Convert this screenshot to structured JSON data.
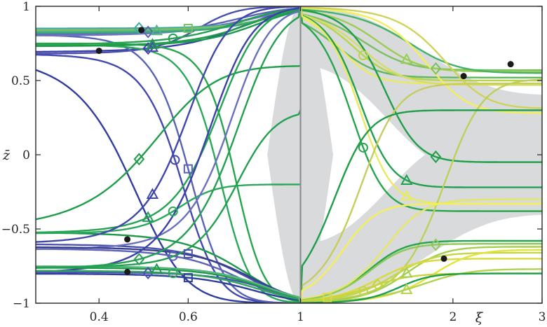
{
  "chart_data": {
    "type": "line",
    "title": "",
    "xlabel": "ξ",
    "ylabel": "z̄",
    "x_scale": "log",
    "xlim": [
      0.3,
      3
    ],
    "ylim": [
      -1,
      1
    ],
    "x_ticks": [
      {
        "value": 0.4,
        "label": "0.4"
      },
      {
        "value": 0.6,
        "label": "0.6"
      },
      {
        "value": 1,
        "label": "1"
      },
      {
        "value": 2,
        "label": "2"
      },
      {
        "value": 3,
        "label": "3"
      }
    ],
    "y_ticks": [
      {
        "value": -1,
        "label": "−1"
      },
      {
        "value": -0.5,
        "label": "−0.5"
      },
      {
        "value": 0,
        "label": "0"
      },
      {
        "value": 0.5,
        "label": "0.5"
      },
      {
        "value": 1,
        "label": "1"
      }
    ],
    "grid": false,
    "legend": "none",
    "colors": {
      "background_band": "#d9dadc",
      "axis": "#262626",
      "divider": "#8e8e8e",
      "marker_dot": "#1a1a1a"
    },
    "left_series": [
      {
        "color": "#3b3fa6",
        "z0": 0.69,
        "zf": 1,
        "c": 0.74,
        "s": 0.1,
        "marker": "diamond",
        "xm": 0.5
      },
      {
        "color": "#4348ad",
        "z0": 0.68,
        "zf": -1,
        "c": 0.58,
        "s": 0.05,
        "marker": "circle",
        "xm": 0.565
      },
      {
        "color": "#4a50b0",
        "z0": 0.68,
        "zf": 1,
        "c": 0.62,
        "s": 0.06,
        "marker": "triangle",
        "xm": 0.51
      },
      {
        "color": "#2f3e9e",
        "z0": 0.68,
        "zf": -1,
        "c": 0.46,
        "s": 0.06,
        "marker": "none",
        "xm": 0.5
      },
      {
        "color": "#5b63b8",
        "z0": 0.81,
        "zf": 1,
        "c": 0.73,
        "s": 0.1,
        "marker": "diamond",
        "xm": 0.5
      },
      {
        "color": "#5a62b7",
        "z0": 0.81,
        "zf": -1,
        "c": 0.6,
        "s": 0.05,
        "marker": "square",
        "xm": 0.6
      },
      {
        "color": "#6f73c0",
        "z0": 0.8,
        "zf": 1,
        "c": 0.76,
        "s": 0.11,
        "marker": "none",
        "xm": 0.5
      },
      {
        "color": "#6670bd",
        "z0": 0.83,
        "zf": 1,
        "c": 0.8,
        "s": 0.1,
        "marker": "none",
        "xm": 0.5
      },
      {
        "color": "#44a9a0",
        "z0": 0.85,
        "zf": 1,
        "c": 0.88,
        "s": 0.1,
        "marker": "diamond",
        "xm": 0.48
      },
      {
        "color": "#55b388",
        "z0": 0.83,
        "zf": 1,
        "c": 0.85,
        "s": 0.1,
        "marker": "triangle",
        "xm": 0.52
      },
      {
        "color": "#7bc064",
        "z0": 0.84,
        "zf": 1,
        "c": 0.86,
        "s": 0.1,
        "marker": "square",
        "xm": 0.6
      },
      {
        "color": "#3aa77a",
        "z0": 0.82,
        "zf": 1,
        "c": 0.84,
        "s": 0.1,
        "marker": "none",
        "xm": 0.5
      },
      {
        "color": "#1d9a52",
        "z0": 0.73,
        "zf": 1,
        "c": 0.8,
        "s": 0.1,
        "marker": "triangle",
        "xm": 0.51
      },
      {
        "color": "#22a150",
        "z0": 0.74,
        "zf": 1,
        "c": 0.72,
        "s": 0.1,
        "marker": "circle",
        "xm": 0.56
      },
      {
        "color": "#2aa85a",
        "z0": 0.74,
        "zf": -1,
        "c": 0.69,
        "s": 0.05,
        "marker": "none",
        "xm": 0.5
      },
      {
        "color": "#27a54d",
        "z0": 0.75,
        "zf": -1,
        "c": 0.74,
        "s": 0.05,
        "marker": "none",
        "xm": 0.5
      },
      {
        "color": "#1f9c46",
        "z0": 0.73,
        "zf": 1,
        "c": 0.77,
        "s": 0.1,
        "marker": "none",
        "xm": 0.5
      },
      {
        "color": "#1f9e4a",
        "z0": -0.52,
        "zf": 0.6,
        "c": 0.5,
        "s": 0.08,
        "marker": "diamond",
        "xm": 0.48
      },
      {
        "color": "#1a9a48",
        "z0": -0.52,
        "zf": -1,
        "c": 0.75,
        "s": 0.1,
        "marker": "none",
        "xm": 0.5
      },
      {
        "color": "#24a352",
        "z0": -0.53,
        "zf": 1,
        "c": 0.68,
        "s": 0.07,
        "marker": "triangle",
        "xm": 0.5
      },
      {
        "color": "#2ba859",
        "z0": -0.53,
        "zf": -0.2,
        "c": 0.57,
        "s": 0.05,
        "marker": "circle",
        "xm": 0.56
      },
      {
        "color": "#3f47aa",
        "z0": -0.6,
        "zf": 1,
        "c": 0.59,
        "s": 0.06,
        "marker": "triangle",
        "xm": 0.51
      },
      {
        "color": "#4a50b0",
        "z0": -0.6,
        "zf": -1,
        "c": 0.76,
        "s": 0.1,
        "marker": "square",
        "xm": 0.6
      },
      {
        "color": "#5c64b8",
        "z0": -0.63,
        "zf": -1,
        "c": 0.74,
        "s": 0.1,
        "marker": "circle",
        "xm": 0.56
      },
      {
        "color": "#6a70bd",
        "z0": -0.64,
        "zf": 1,
        "c": 0.72,
        "s": 0.07,
        "marker": "none",
        "xm": 0.5
      },
      {
        "color": "#38408e",
        "z0": -0.62,
        "zf": -1,
        "c": 0.78,
        "s": 0.1,
        "marker": "none",
        "xm": 0.5
      },
      {
        "color": "#2f3e9e",
        "z0": -0.8,
        "zf": -1,
        "c": 0.78,
        "s": 0.1,
        "marker": "square",
        "xm": 0.6
      },
      {
        "color": "#3b41a8",
        "z0": -0.8,
        "zf": 1,
        "c": 0.65,
        "s": 0.07,
        "marker": "none",
        "xm": 0.5
      },
      {
        "color": "#4b52b0",
        "z0": -0.79,
        "zf": -1,
        "c": 0.84,
        "s": 0.1,
        "marker": "diamond",
        "xm": 0.5
      },
      {
        "color": "#1e9a4c",
        "z0": -0.76,
        "zf": -1,
        "c": 0.82,
        "s": 0.1,
        "marker": "triangle",
        "xm": 0.52
      },
      {
        "color": "#23a050",
        "z0": -0.77,
        "zf": 1,
        "c": 0.74,
        "s": 0.08,
        "marker": "diamond",
        "xm": 0.48
      },
      {
        "color": "#2fa65a",
        "z0": -0.78,
        "zf": -1,
        "c": 0.8,
        "s": 0.1,
        "marker": "circle",
        "xm": 0.56
      },
      {
        "color": "#58b57f",
        "z0": -0.75,
        "zf": -1,
        "c": 0.83,
        "s": 0.1,
        "marker": "none",
        "xm": 0.5
      },
      {
        "color": "#22a050",
        "z0": -0.76,
        "zf": 0.3,
        "c": 0.74,
        "s": 0.07,
        "marker": "none",
        "xm": 0.5
      }
    ],
    "right_series": [
      {
        "color": "#7bc064",
        "z0": 1,
        "zf": 0.57,
        "c": 1.3,
        "s": 0.15,
        "marker": "diamond",
        "xm": 1.85
      },
      {
        "color": "#9acd52",
        "z0": 1,
        "zf": 0.56,
        "c": 1.4,
        "s": 0.15,
        "marker": "triangle",
        "xm": 1.62
      },
      {
        "color": "#5fb85f",
        "z0": 1,
        "zf": 0.52,
        "c": 1.15,
        "s": 0.12,
        "marker": "none",
        "xm": 1.5
      },
      {
        "color": "#b8d449",
        "z0": 1,
        "zf": 0.5,
        "c": 1.25,
        "s": 0.12,
        "marker": "circle",
        "xm": 1.33
      },
      {
        "color": "#e9ea60",
        "z0": 1,
        "zf": 0.48,
        "c": 1.18,
        "s": 0.1,
        "marker": "none",
        "xm": 1.5
      },
      {
        "color": "#d6dc6a",
        "z0": 1,
        "zf": 0.47,
        "c": 1.3,
        "s": 0.14,
        "marker": "none",
        "xm": 1.5
      },
      {
        "color": "#45b26a",
        "z0": 1,
        "zf": 0.55,
        "c": 1.6,
        "s": 0.2,
        "marker": "none",
        "xm": 1.5
      },
      {
        "color": "#1f9e4a",
        "z0": 1,
        "zf": -0.05,
        "c": 1.45,
        "s": 0.12,
        "marker": "diamond",
        "xm": 1.85
      },
      {
        "color": "#22a050",
        "z0": 1,
        "zf": -0.22,
        "c": 1.3,
        "s": 0.1,
        "marker": "triangle",
        "xm": 1.62
      },
      {
        "color": "#27a54d",
        "z0": 1,
        "zf": -0.38,
        "c": 1.25,
        "s": 0.1,
        "marker": "circle",
        "xm": 1.33
      },
      {
        "color": "#e9ea60",
        "z0": 1,
        "zf": -0.33,
        "c": 1.3,
        "s": 0.1,
        "marker": "triangle",
        "xm": 1.62
      },
      {
        "color": "#f3ef5c",
        "z0": 1,
        "zf": 0.28,
        "c": 1.75,
        "s": 0.18,
        "marker": "none",
        "xm": 1.5
      },
      {
        "color": "#cfd35c",
        "z0": 1,
        "zf": 0.31,
        "c": 1.9,
        "s": 0.2,
        "marker": "none",
        "xm": 1.5
      },
      {
        "color": "#c6cc5e",
        "z0": -1,
        "zf": 0.48,
        "c": 1.3,
        "s": 0.12,
        "marker": "none",
        "xm": 1.5
      },
      {
        "color": "#bcd05a",
        "z0": -1,
        "zf": 0.51,
        "c": 1.9,
        "s": 0.18,
        "marker": "none",
        "xm": 1.5
      },
      {
        "color": "#1f9e4a",
        "z0": -1,
        "zf": 0.3,
        "c": 1.15,
        "s": 0.1,
        "marker": "none",
        "xm": 1.5
      },
      {
        "color": "#27a54d",
        "z0": -1,
        "zf": -0.58,
        "c": 1.35,
        "s": 0.12,
        "marker": "none",
        "xm": 1.5
      },
      {
        "color": "#e5e766",
        "z0": -1,
        "zf": -0.3,
        "c": 1.45,
        "s": 0.14,
        "marker": "none",
        "xm": 1.5
      },
      {
        "color": "#f3ef5c",
        "z0": -1,
        "zf": -0.33,
        "c": 1.2,
        "s": 0.1,
        "marker": "none",
        "xm": 1.5
      },
      {
        "color": "#8fc95a",
        "z0": -1,
        "zf": -0.6,
        "c": 1.35,
        "s": 0.12,
        "marker": "diamond",
        "xm": 1.85
      },
      {
        "color": "#a6cf50",
        "z0": -1,
        "zf": -0.62,
        "c": 1.6,
        "s": 0.15,
        "marker": "triangle",
        "xm": 1.62
      },
      {
        "color": "#c4d64a",
        "z0": -1,
        "zf": -0.66,
        "c": 1.5,
        "s": 0.15,
        "marker": "circle",
        "xm": 1.33
      },
      {
        "color": "#d9db3c",
        "z0": -1,
        "zf": -0.7,
        "c": 1.4,
        "s": 0.14,
        "marker": "square",
        "xm": 1.13
      },
      {
        "color": "#e1e43d",
        "z0": -1,
        "zf": -0.64,
        "c": 1.8,
        "s": 0.18,
        "marker": "none",
        "xm": 1.5
      },
      {
        "color": "#b3d14e",
        "z0": -1,
        "zf": -0.77,
        "c": 1.7,
        "s": 0.2,
        "marker": "triangle",
        "xm": 1.62
      },
      {
        "color": "#c9d43c",
        "z0": -1,
        "zf": -0.8,
        "c": 1.35,
        "s": 0.14,
        "marker": "diamond",
        "xm": 1.42
      },
      {
        "color": "#1f9e4a",
        "z0": -1,
        "zf": -0.8,
        "c": 1.55,
        "s": 0.12,
        "marker": "none",
        "xm": 1.5
      }
    ],
    "dots": [
      {
        "x": 0.4,
        "y": 0.7
      },
      {
        "x": 0.485,
        "y": 0.84
      },
      {
        "x": 0.455,
        "y": -0.57
      },
      {
        "x": 0.455,
        "y": -0.79
      },
      {
        "x": 2.1,
        "y": 0.53
      },
      {
        "x": 2.6,
        "y": 0.61
      },
      {
        "x": 1.92,
        "y": -0.7
      }
    ]
  }
}
